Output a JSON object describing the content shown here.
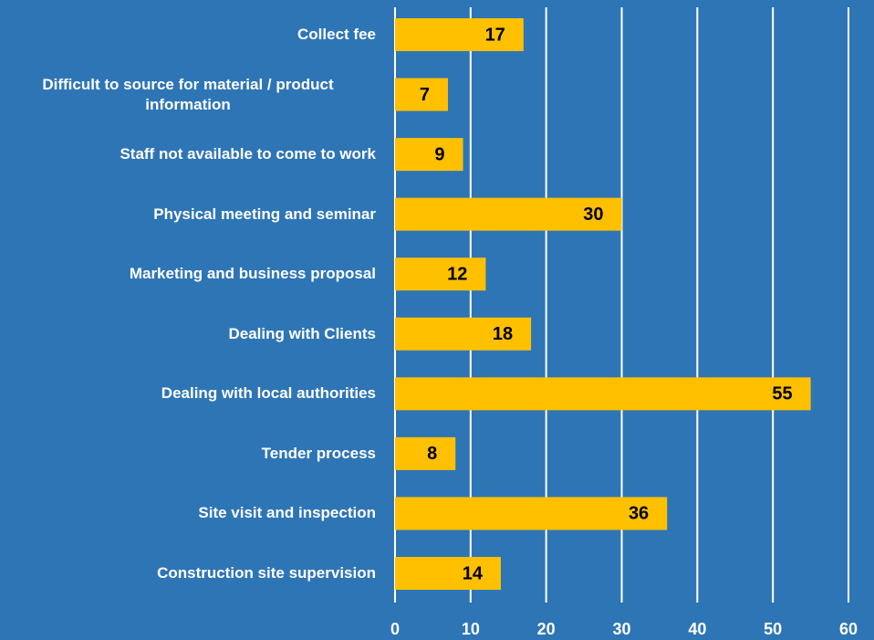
{
  "chart_data": {
    "type": "bar",
    "orientation": "horizontal",
    "categories": [
      "Collect fee",
      "Difficult to source for material / product information",
      "Staff not available to come to work",
      "Physical meeting and seminar",
      "Marketing and business proposal",
      "Dealing with Clients",
      "Dealing with local authorities",
      "Tender process",
      "Site visit and inspection",
      "Construction site supervision"
    ],
    "values": [
      17,
      7,
      9,
      30,
      12,
      18,
      55,
      8,
      36,
      14
    ],
    "color": "#ffc000",
    "background": "#2e75b6",
    "xlim": [
      0,
      60
    ],
    "xticks": [
      0,
      10,
      20,
      30,
      40,
      50,
      60
    ],
    "grid": true
  }
}
